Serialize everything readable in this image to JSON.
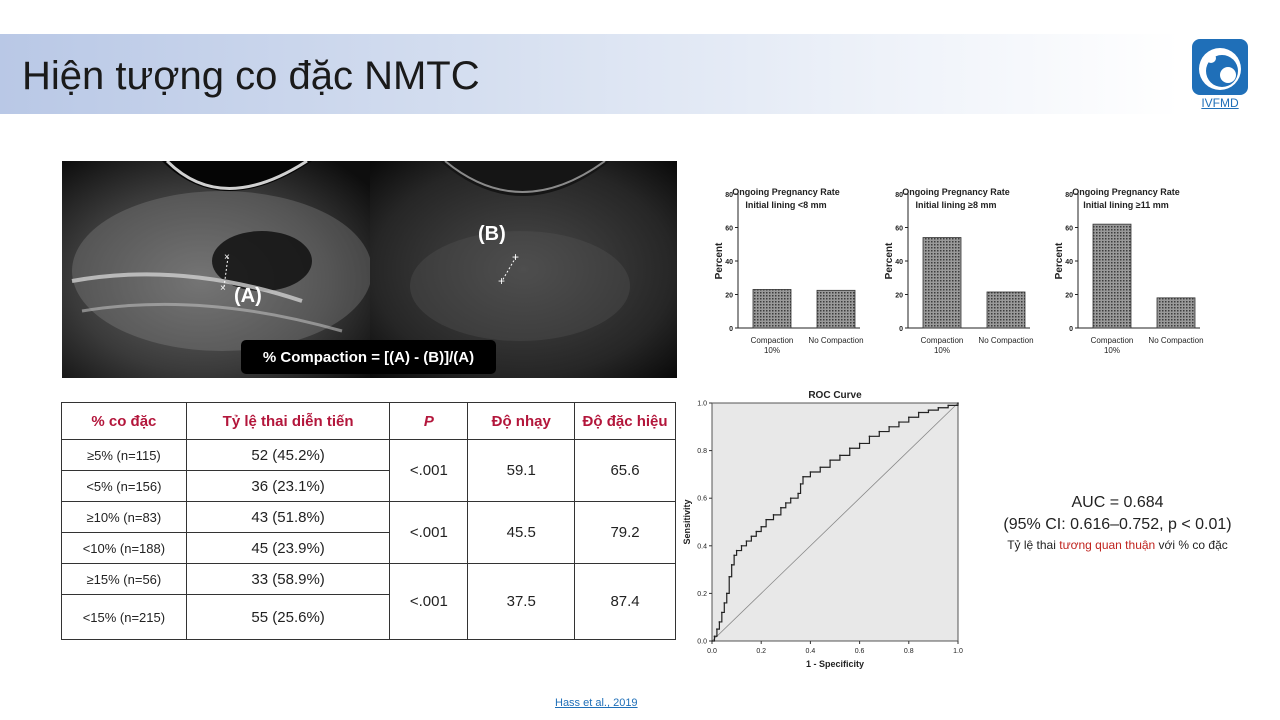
{
  "title": "Hiện tượng co đặc NMTC",
  "logo_text": "IVFMD",
  "images": {
    "label_a": "(A)",
    "label_b": "(B)",
    "formula": "% Compaction = [(A) - (B)]/(A)"
  },
  "table": {
    "headers": [
      "% co đặc",
      "Tỷ lệ thai diễn tiến",
      "P",
      "Độ nhạy",
      "Độ đặc hiệu"
    ],
    "groups": [
      {
        "rows": [
          [
            "≥5% (n=115)",
            "52 (45.2%)"
          ],
          [
            "<5% (n=156)",
            "36 (23.1%)"
          ]
        ],
        "p": "<.001",
        "sens": "59.1",
        "spec": "65.6"
      },
      {
        "rows": [
          [
            "≥10% (n=83)",
            "43 (51.8%)"
          ],
          [
            "<10% (n=188)",
            "45 (23.9%)"
          ]
        ],
        "p": "<.001",
        "sens": "45.5",
        "spec": "79.2"
      },
      {
        "rows": [
          [
            "≥15% (n=56)",
            "33 (58.9%)"
          ],
          [
            "<15% (n=215)",
            "55 (25.6%)"
          ]
        ],
        "p": "<.001",
        "sens": "37.5",
        "spec": "87.4"
      }
    ]
  },
  "chart_data": [
    {
      "type": "bar",
      "title": "Ongoing Pregnancy Rate",
      "subtitle": "Initial lining <8 mm",
      "ylabel": "Percent",
      "categories": [
        "Compaction 10%",
        "No Compaction"
      ],
      "values": [
        23,
        22.5
      ],
      "ylim": [
        0,
        80
      ],
      "yticks": [
        "0",
        "20",
        "40",
        "60",
        "80"
      ]
    },
    {
      "type": "bar",
      "title": "Ongoing Pregnancy Rate",
      "subtitle": "Initial lining ≥8 mm",
      "ylabel": "Percent",
      "categories": [
        "Compaction 10%",
        "No Compaction"
      ],
      "values": [
        54,
        21.5
      ],
      "ylim": [
        0,
        80
      ],
      "yticks": [
        "0",
        "20",
        "40",
        "60",
        "80"
      ]
    },
    {
      "type": "bar",
      "title": "Ongoing Pregnancy Rate",
      "subtitle": "Initial lining ≥11 mm",
      "ylabel": "Percent",
      "categories": [
        "Compaction 10%",
        "No Compaction"
      ],
      "values": [
        62,
        18
      ],
      "ylim": [
        0,
        80
      ],
      "yticks": [
        "0",
        "20",
        "40",
        "60",
        "80"
      ]
    },
    {
      "type": "line",
      "title": "ROC Curve",
      "xlabel": "1 - Specificity",
      "ylabel": "Sensitivity",
      "xlim": [
        0,
        1
      ],
      "ylim": [
        0,
        1
      ],
      "ticks": [
        "0.0",
        "0.2",
        "0.4",
        "0.6",
        "0.8",
        "1.0"
      ],
      "x": [
        0,
        0.01,
        0.02,
        0.03,
        0.04,
        0.05,
        0.06,
        0.07,
        0.08,
        0.09,
        0.1,
        0.12,
        0.14,
        0.16,
        0.18,
        0.2,
        0.22,
        0.25,
        0.28,
        0.3,
        0.32,
        0.35,
        0.36,
        0.37,
        0.4,
        0.44,
        0.48,
        0.52,
        0.56,
        0.6,
        0.64,
        0.68,
        0.72,
        0.76,
        0.8,
        0.84,
        0.88,
        0.92,
        0.96,
        1.0
      ],
      "y": [
        0,
        0.02,
        0.05,
        0.08,
        0.12,
        0.16,
        0.2,
        0.27,
        0.32,
        0.36,
        0.38,
        0.4,
        0.42,
        0.44,
        0.46,
        0.48,
        0.51,
        0.53,
        0.56,
        0.58,
        0.6,
        0.62,
        0.66,
        0.69,
        0.71,
        0.73,
        0.76,
        0.78,
        0.81,
        0.83,
        0.86,
        0.88,
        0.9,
        0.92,
        0.94,
        0.96,
        0.97,
        0.98,
        0.99,
        1.0
      ]
    }
  ],
  "auc": {
    "line1": "AUC = 0.684",
    "line2": "(95% CI: 0.616–0.752, p < 0.01)",
    "line3_pre": "Tỷ lệ thai ",
    "line3_red": "tương quan thuận",
    "line3_post": " với % co đặc"
  },
  "citation": "Hass et al., 2019",
  "colors": {
    "header_red": "#b3163b",
    "accent_red": "#c0231e",
    "link_blue": "#1f6fb8"
  }
}
